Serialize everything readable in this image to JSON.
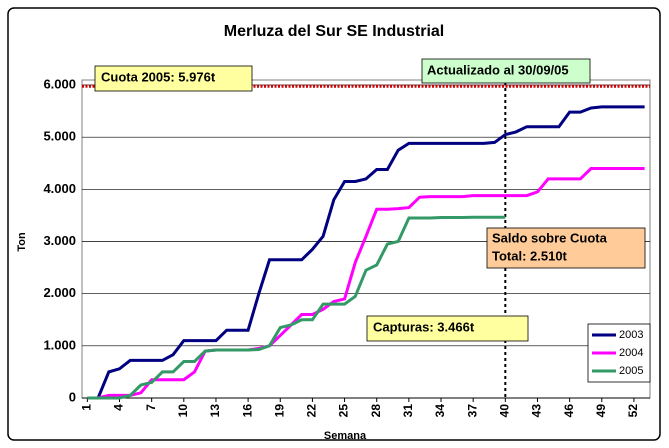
{
  "chart_data": {
    "type": "line",
    "title": "Merluza del Sur SE Industrial",
    "x_label": "Semana",
    "y_label": "Ton",
    "x": [
      1,
      2,
      3,
      4,
      5,
      6,
      7,
      8,
      9,
      10,
      11,
      12,
      13,
      14,
      15,
      16,
      17,
      18,
      19,
      20,
      21,
      22,
      23,
      24,
      25,
      26,
      27,
      28,
      29,
      30,
      31,
      32,
      33,
      34,
      35,
      36,
      37,
      38,
      39,
      40,
      41,
      42,
      43,
      44,
      45,
      46,
      47,
      48,
      49,
      50,
      51,
      52,
      53
    ],
    "xlim": [
      0.5,
      53.5
    ],
    "xticks": [
      1,
      4,
      7,
      10,
      13,
      16,
      19,
      22,
      25,
      28,
      31,
      34,
      37,
      40,
      43,
      46,
      49,
      52
    ],
    "ylim": [
      0,
      6000
    ],
    "yticks": [
      {
        "value": 0,
        "label": "0"
      },
      {
        "value": 1000,
        "label": "1.000"
      },
      {
        "value": 2000,
        "label": "2.000"
      },
      {
        "value": 3000,
        "label": "3.000"
      },
      {
        "value": 4000,
        "label": "4.000"
      },
      {
        "value": 5000,
        "label": "5.000"
      },
      {
        "value": 6000,
        "label": "6.000"
      }
    ],
    "grid": true,
    "legend": "lower right",
    "series": [
      {
        "name": "2003",
        "color": "#000080",
        "values": [
          0,
          0,
          500,
          560,
          720,
          720,
          720,
          720,
          830,
          1100,
          1100,
          1100,
          1100,
          1300,
          1300,
          1300,
          2000,
          2650,
          2650,
          2650,
          2650,
          2850,
          3100,
          3800,
          4150,
          4150,
          4200,
          4380,
          4380,
          4750,
          4880,
          4880,
          4880,
          4880,
          4880,
          4880,
          4880,
          4880,
          4900,
          5050,
          5100,
          5200,
          5200,
          5200,
          5200,
          5480,
          5480,
          5560,
          5580,
          5580,
          5580,
          5580,
          5580
        ]
      },
      {
        "name": "2004",
        "color": "#ff00ff",
        "values": [
          0,
          0,
          50,
          50,
          50,
          100,
          350,
          350,
          350,
          350,
          500,
          900,
          920,
          920,
          920,
          920,
          950,
          1000,
          1200,
          1400,
          1600,
          1600,
          1700,
          1850,
          1900,
          2600,
          3100,
          3620,
          3620,
          3630,
          3650,
          3850,
          3860,
          3860,
          3860,
          3860,
          3880,
          3880,
          3880,
          3880,
          3880,
          3880,
          3950,
          4200,
          4200,
          4200,
          4200,
          4400,
          4400,
          4400,
          4400,
          4400,
          4400
        ]
      },
      {
        "name": "2005",
        "color": "#339966",
        "values": [
          0,
          0,
          0,
          0,
          50,
          250,
          300,
          500,
          500,
          700,
          700,
          900,
          920,
          920,
          920,
          920,
          930,
          1000,
          1350,
          1400,
          1500,
          1500,
          1800,
          1800,
          1800,
          1950,
          2450,
          2550,
          2950,
          3000,
          3450,
          3450,
          3450,
          3460,
          3460,
          3460,
          3466,
          3466,
          3466,
          3466,
          null,
          null,
          null,
          null,
          null,
          null,
          null,
          null,
          null,
          null,
          null,
          null,
          null
        ]
      }
    ],
    "quota": {
      "value": 5976,
      "label": "Cuota 2005: 5.976t",
      "color": "#cc0000"
    },
    "update_marker": {
      "x": 40,
      "label": "Actualizado al 30/09/05"
    },
    "balance_label": [
      "Saldo sobre Cuota",
      "Total: 2.510t"
    ],
    "catch_label": "Capturas: 3.466t"
  }
}
